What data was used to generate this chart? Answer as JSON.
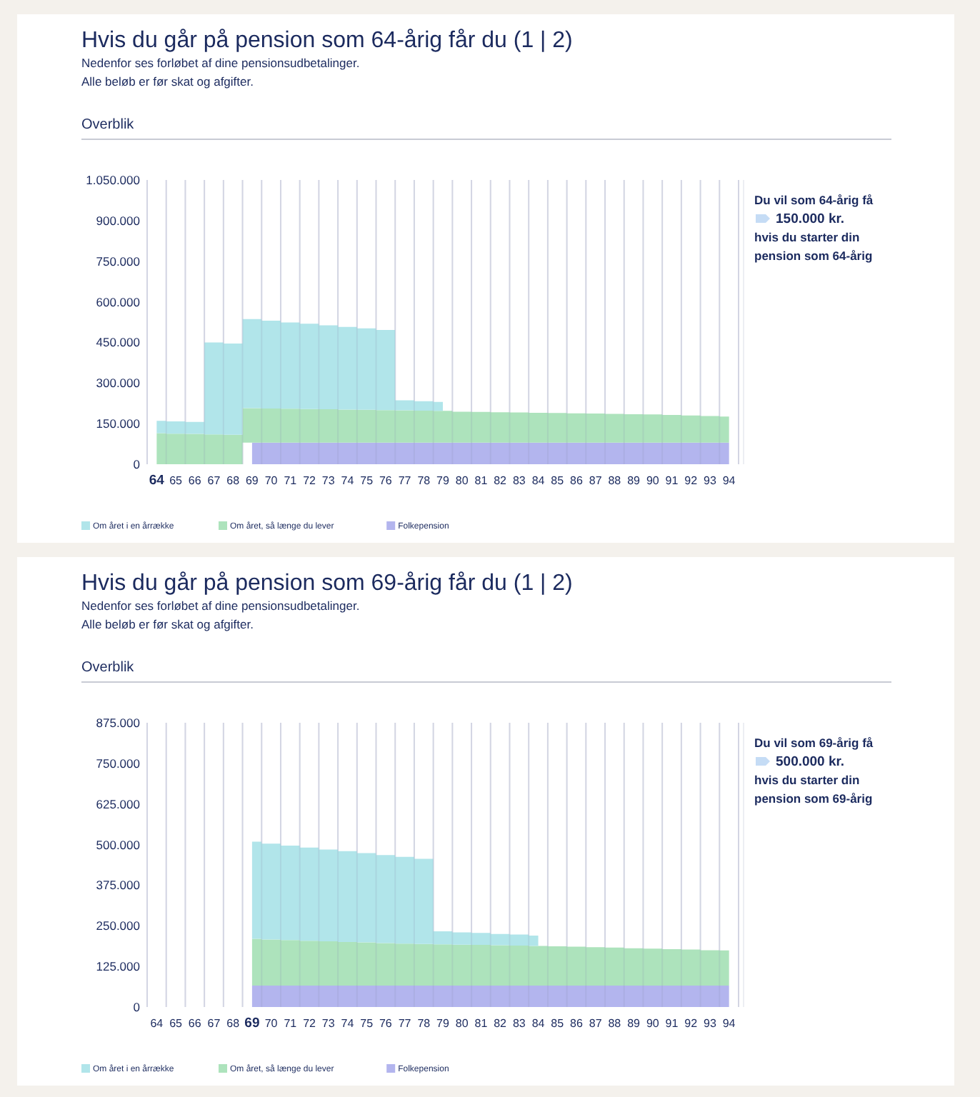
{
  "chart_data": [
    {
      "type": "area",
      "stacked": true,
      "title": "Hvis du går på pension som 64-årig får du (1 | 2)",
      "subtitle": "Nedenfor ses forløbet af dine pensionsudbetalinger.\nAlle beløb er før skat og afgifter.",
      "annotations": [
        "Overblik",
        "Du vil som 64-årig få",
        "150.000 kr.",
        "hvis du starter din",
        "pension som 64-årig"
      ],
      "categories": [
        "64",
        "65",
        "66",
        "67",
        "68",
        "69",
        "70",
        "71",
        "72",
        "73",
        "74",
        "75",
        "76",
        "77",
        "78",
        "79",
        "80",
        "81",
        "82",
        "83",
        "84",
        "85",
        "86",
        "87",
        "88",
        "89",
        "90",
        "91",
        "92",
        "93",
        "94"
      ],
      "ylim": [
        0,
        1050000
      ],
      "yticks": [
        0,
        {
          "value": 150000,
          "label": "150.000"
        },
        {
          "value": 300000,
          "label": "300.000"
        },
        {
          "value": 450000,
          "label": "450.000"
        },
        {
          "value": 600000,
          "label": "600.000"
        },
        {
          "value": 750000,
          "label": "750.000"
        },
        {
          "value": 900000,
          "label": "900.000"
        },
        {
          "value": 1050000,
          "label": "1.050.000"
        }
      ],
      "grid": "x",
      "legend": "bottom left",
      "series": [
        {
          "name": "Folkepension",
          "color": "#b3b5ee",
          "values": [
            null,
            null,
            null,
            null,
            null,
            80000,
            80000,
            80000,
            80000,
            80000,
            80000,
            80000,
            80000,
            80000,
            80000,
            80000,
            80000,
            80000,
            80000,
            80000,
            80000,
            80000,
            80000,
            80000,
            80000,
            80000,
            80000,
            80000,
            80000,
            80000,
            80000
          ]
        },
        {
          "name": "Om året, så længe du lever",
          "color": "#ade3bc",
          "values": [
            115000,
            113000,
            112000,
            110000,
            109000,
            127000,
            126000,
            125000,
            124000,
            123000,
            122000,
            121000,
            120000,
            119000,
            118000,
            117000,
            114000,
            113000,
            112000,
            111000,
            110000,
            109000,
            108000,
            107000,
            106000,
            105000,
            104000,
            102000,
            100000,
            98000,
            96000
          ]
        },
        {
          "name": "Om året i en årrække",
          "color": "#b1e5ea",
          "values": [
            45000,
            45000,
            44000,
            340000,
            337000,
            329000,
            324000,
            319000,
            315000,
            310000,
            305000,
            301000,
            296000,
            37000,
            35000,
            33000,
            null,
            null,
            null,
            null,
            null,
            null,
            null,
            null,
            null,
            null,
            null,
            null,
            null,
            null,
            null
          ]
        }
      ]
    },
    {
      "type": "area",
      "stacked": true,
      "title": "Hvis du går på pension som 69-årig får du (1 | 2)",
      "subtitle": "Nedenfor ses forløbet af dine pensionsudbetalinger.\nAlle beløb er før skat og afgifter.",
      "annotations": [
        "Overblik",
        "Du vil som 69-årig få",
        "500.000 kr.",
        "hvis du starter din",
        "pension som 69-årig"
      ],
      "categories": [
        "64",
        "65",
        "66",
        "67",
        "68",
        "69",
        "70",
        "71",
        "72",
        "73",
        "74",
        "75",
        "76",
        "77",
        "78",
        "79",
        "80",
        "81",
        "82",
        "83",
        "84",
        "85",
        "86",
        "87",
        "88",
        "89",
        "90",
        "91",
        "92",
        "93",
        "94"
      ],
      "ylim": [
        0,
        875000
      ],
      "yticks": [
        0,
        {
          "value": 125000,
          "label": "125.000"
        },
        {
          "value": 250000,
          "label": "250.000"
        },
        {
          "value": 375000,
          "label": "375.000"
        },
        {
          "value": 500000,
          "label": "500.000"
        },
        {
          "value": 625000,
          "label": "625.000"
        },
        {
          "value": 750000,
          "label": "750.000"
        },
        {
          "value": 875000,
          "label": "875.000"
        }
      ],
      "grid": "x",
      "legend": "bottom left",
      "series": [
        {
          "name": "Folkepension",
          "color": "#b3b5ee",
          "values": [
            null,
            null,
            null,
            null,
            null,
            66000,
            66000,
            66000,
            66000,
            66000,
            66000,
            66000,
            66000,
            66000,
            66000,
            66000,
            66000,
            66000,
            66000,
            66000,
            66000,
            66000,
            66000,
            66000,
            66000,
            66000,
            66000,
            66000,
            66000,
            66000,
            66000
          ]
        },
        {
          "name": "Om året, så længe du lever",
          "color": "#ade3bc",
          "values": [
            null,
            null,
            null,
            null,
            null,
            144000,
            142000,
            140000,
            138000,
            136000,
            134000,
            133000,
            131000,
            129000,
            128000,
            127000,
            126000,
            125000,
            124000,
            123000,
            122000,
            121000,
            120000,
            118000,
            117000,
            115000,
            114000,
            112000,
            111000,
            109000,
            108000
          ]
        },
        {
          "name": "Om året i en årrække",
          "color": "#b1e5ea",
          "values": [
            null,
            null,
            null,
            null,
            null,
            299000,
            295000,
            291000,
            287000,
            283000,
            280000,
            275000,
            271000,
            267000,
            262000,
            40000,
            38000,
            37000,
            35000,
            34000,
            32000,
            null,
            null,
            null,
            null,
            null,
            null,
            null,
            null,
            null,
            null
          ]
        }
      ]
    }
  ]
}
